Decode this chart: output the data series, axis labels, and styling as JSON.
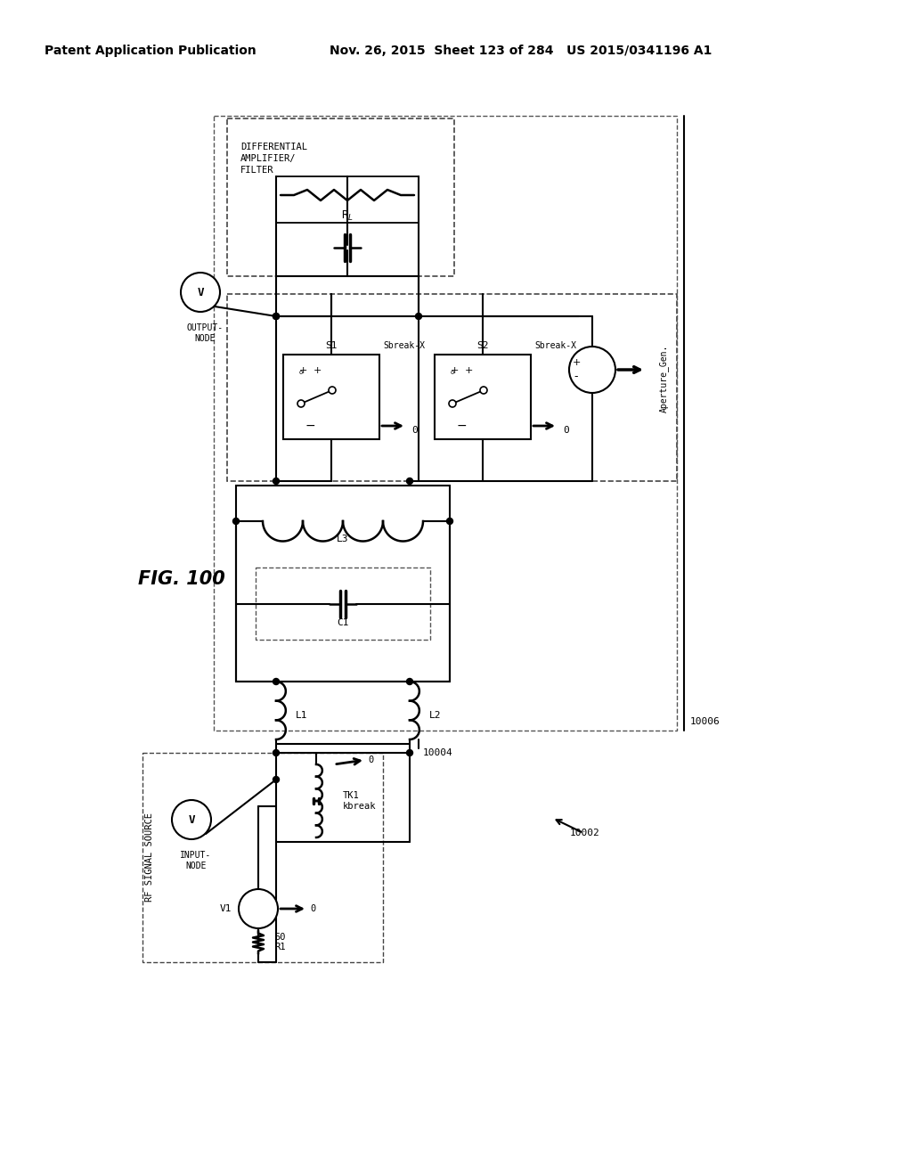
{
  "title_left": "Patent Application Publication",
  "title_right": "Nov. 26, 2015  Sheet 123 of 284   US 2015/0341196 A1",
  "fig_label": "FIG. 100",
  "background_color": "#ffffff",
  "line_color": "#000000",
  "text_color": "#000000"
}
